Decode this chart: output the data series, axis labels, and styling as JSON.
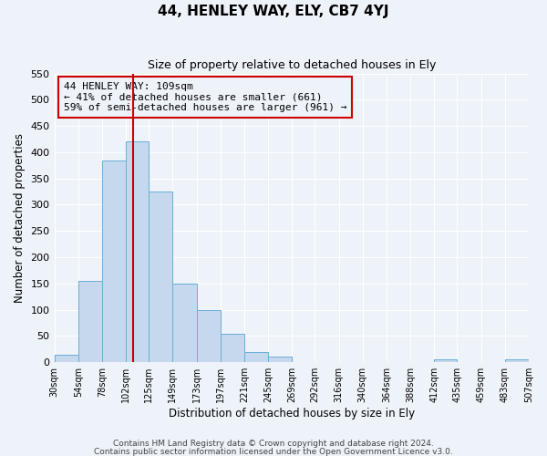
{
  "title": "44, HENLEY WAY, ELY, CB7 4YJ",
  "subtitle": "Size of property relative to detached houses in Ely",
  "xlabel": "Distribution of detached houses by size in Ely",
  "ylabel": "Number of detached properties",
  "footnote1": "Contains HM Land Registry data © Crown copyright and database right 2024.",
  "footnote2": "Contains public sector information licensed under the Open Government Licence v3.0.",
  "bin_labels": [
    "30sqm",
    "54sqm",
    "78sqm",
    "102sqm",
    "125sqm",
    "149sqm",
    "173sqm",
    "197sqm",
    "221sqm",
    "245sqm",
    "269sqm",
    "292sqm",
    "316sqm",
    "340sqm",
    "364sqm",
    "388sqm",
    "412sqm",
    "435sqm",
    "459sqm",
    "483sqm",
    "507sqm"
  ],
  "bar_values": [
    15,
    155,
    385,
    420,
    325,
    150,
    100,
    55,
    20,
    10,
    0,
    0,
    0,
    0,
    0,
    0,
    5,
    0,
    0,
    5
  ],
  "bin_edges": [
    30,
    54,
    78,
    102,
    125,
    149,
    173,
    197,
    221,
    245,
    269,
    292,
    316,
    340,
    364,
    388,
    412,
    435,
    459,
    483,
    507
  ],
  "ylim": [
    0,
    550
  ],
  "yticks": [
    0,
    50,
    100,
    150,
    200,
    250,
    300,
    350,
    400,
    450,
    500,
    550
  ],
  "bar_color": "#c5d8ed",
  "bar_edge_color": "#6aaed6",
  "vline_x": 109,
  "vline_color": "#cc0000",
  "annotation_title": "44 HENLEY WAY: 109sqm",
  "annotation_line1": "← 41% of detached houses are smaller (661)",
  "annotation_line2": "59% of semi-detached houses are larger (961) →",
  "annotation_box_edge_color": "#cc0000",
  "bg_color": "#eef2f9",
  "grid_color": "#ffffff",
  "title_fontsize": 11,
  "subtitle_fontsize": 9
}
